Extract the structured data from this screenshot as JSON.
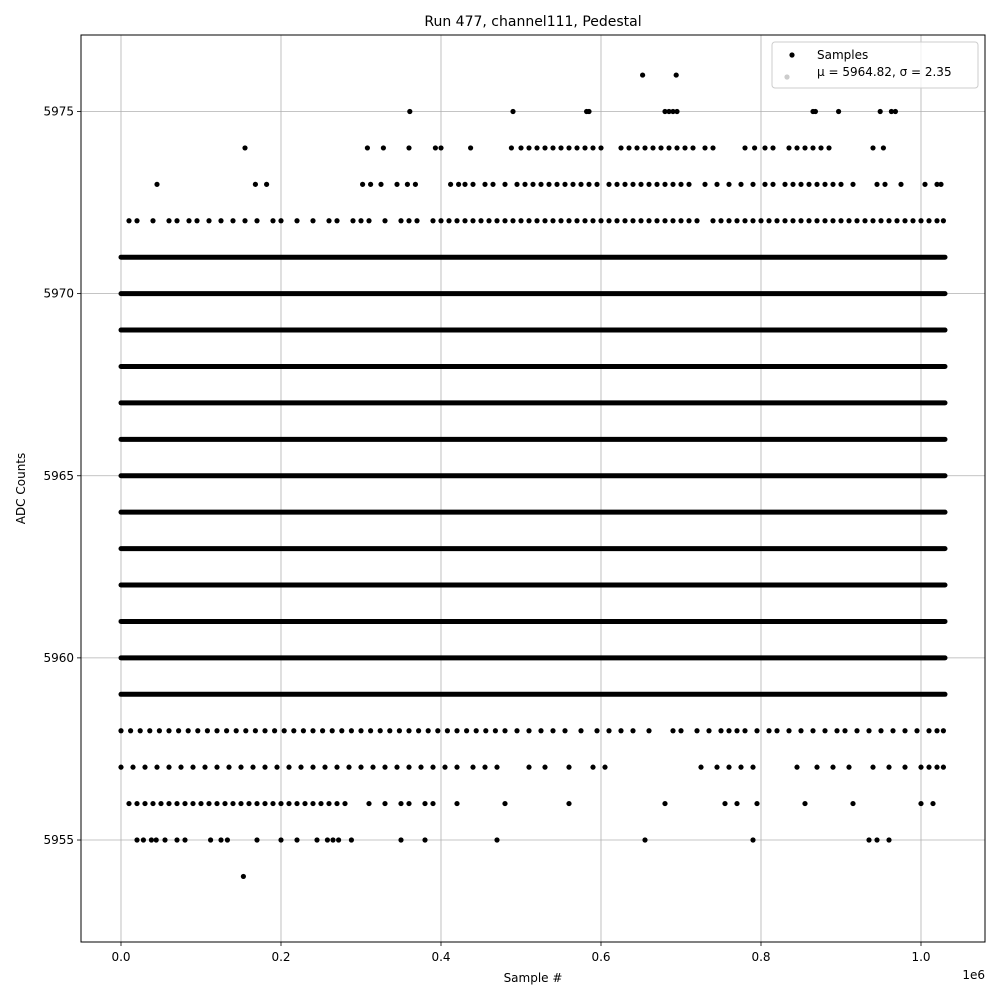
{
  "chart_data": {
    "type": "scatter",
    "title": "Run 477, channel111, Pedestal",
    "xlabel": "Sample #",
    "ylabel": "ADC Counts",
    "x_offset_label": "1e6",
    "xlim": [
      -50000,
      1080000
    ],
    "ylim": [
      5952.2,
      5977.1
    ],
    "x_ticks": [
      0,
      200000,
      400000,
      600000,
      800000,
      1000000
    ],
    "x_tick_labels": [
      "0.0",
      "0.2",
      "0.4",
      "0.6",
      "0.8",
      "1.0"
    ],
    "y_ticks": [
      5955,
      5960,
      5965,
      5970,
      5975
    ],
    "y_tick_labels": [
      "5955",
      "5960",
      "5965",
      "5970",
      "5975"
    ],
    "grid": true,
    "legend_position": "top-right",
    "legend_entries": [
      {
        "label": "Samples",
        "marker_color": "#000000"
      },
      {
        "label": "μ = 5964.82, σ = 2.35",
        "marker_color": "#cccccc"
      }
    ],
    "x_max_sample": 1030000,
    "series": [
      {
        "name": "Samples",
        "color": "#000000",
        "dense_levels": [
          5959,
          5960,
          5961,
          5962,
          5963,
          5964,
          5965,
          5966,
          5967,
          5968,
          5969,
          5970,
          5971
        ],
        "sparse_points": [
          {
            "y": 5954,
            "x": [
              153000
            ]
          },
          {
            "y": 5955,
            "x": [
              20000,
              28000,
              38000,
              44000,
              55000,
              70000,
              80000,
              112000,
              125000,
              133000,
              170000,
              200000,
              220000,
              245000,
              258000,
              265000,
              272000,
              288000,
              350000,
              380000,
              470000,
              655000,
              790000,
              935000,
              945000,
              960000
            ]
          },
          {
            "y": 5956,
            "x": [
              10000,
              20000,
              30000,
              40000,
              50000,
              60000,
              70000,
              80000,
              90000,
              100000,
              110000,
              120000,
              130000,
              140000,
              150000,
              160000,
              170000,
              180000,
              190000,
              200000,
              210000,
              220000,
              230000,
              240000,
              250000,
              260000,
              270000,
              280000,
              310000,
              330000,
              350000,
              360000,
              380000,
              390000,
              420000,
              480000,
              560000,
              680000,
              755000,
              770000,
              795000,
              855000,
              915000,
              1000000,
              1015000
            ]
          },
          {
            "y": 5957,
            "x": [
              0,
              15000,
              30000,
              45000,
              60000,
              75000,
              90000,
              105000,
              120000,
              135000,
              150000,
              165000,
              180000,
              195000,
              210000,
              225000,
              240000,
              255000,
              270000,
              285000,
              300000,
              315000,
              330000,
              345000,
              360000,
              375000,
              390000,
              405000,
              420000,
              440000,
              455000,
              470000,
              510000,
              530000,
              560000,
              590000,
              605000,
              725000,
              745000,
              760000,
              775000,
              790000,
              845000,
              870000,
              890000,
              910000,
              940000,
              960000,
              980000,
              1000000,
              1010000,
              1020000,
              1028000
            ]
          },
          {
            "y": 5958,
            "x": [
              0,
              12000,
              24000,
              36000,
              48000,
              60000,
              72000,
              84000,
              96000,
              108000,
              120000,
              132000,
              144000,
              156000,
              168000,
              180000,
              192000,
              204000,
              216000,
              228000,
              240000,
              252000,
              264000,
              276000,
              288000,
              300000,
              312000,
              324000,
              336000,
              348000,
              360000,
              372000,
              384000,
              396000,
              408000,
              420000,
              432000,
              444000,
              456000,
              468000,
              480000,
              495000,
              510000,
              525000,
              540000,
              555000,
              575000,
              595000,
              610000,
              625000,
              640000,
              660000,
              690000,
              700000,
              720000,
              735000,
              750000,
              760000,
              770000,
              780000,
              795000,
              810000,
              820000,
              835000,
              850000,
              865000,
              880000,
              895000,
              905000,
              920000,
              935000,
              950000,
              965000,
              980000,
              995000,
              1010000,
              1020000,
              1028000
            ]
          },
          {
            "y": 5972,
            "x": [
              10000,
              20000,
              40000,
              60000,
              70000,
              85000,
              95000,
              110000,
              125000,
              140000,
              155000,
              170000,
              190000,
              200000,
              220000,
              240000,
              260000,
              270000,
              290000,
              300000,
              310000,
              330000,
              350000,
              360000,
              370000,
              390000,
              400000,
              410000,
              420000,
              430000,
              440000,
              450000,
              460000,
              470000,
              480000,
              490000,
              500000,
              510000,
              520000,
              530000,
              540000,
              550000,
              560000,
              570000,
              580000,
              590000,
              600000,
              610000,
              620000,
              630000,
              640000,
              650000,
              660000,
              670000,
              680000,
              690000,
              700000,
              710000,
              720000,
              740000,
              750000,
              760000,
              770000,
              780000,
              790000,
              800000,
              810000,
              820000,
              830000,
              840000,
              850000,
              860000,
              870000,
              880000,
              890000,
              900000,
              910000,
              920000,
              930000,
              940000,
              950000,
              960000,
              970000,
              980000,
              990000,
              1000000,
              1010000,
              1020000,
              1028000
            ]
          },
          {
            "y": 5973,
            "x": [
              45000,
              168000,
              182000,
              302000,
              312000,
              325000,
              345000,
              358000,
              368000,
              412000,
              422000,
              430000,
              440000,
              455000,
              465000,
              480000,
              495000,
              505000,
              515000,
              525000,
              535000,
              545000,
              555000,
              565000,
              575000,
              585000,
              595000,
              610000,
              620000,
              630000,
              640000,
              650000,
              660000,
              670000,
              680000,
              690000,
              700000,
              710000,
              730000,
              745000,
              760000,
              775000,
              790000,
              805000,
              815000,
              830000,
              840000,
              850000,
              860000,
              870000,
              880000,
              890000,
              900000,
              915000,
              945000,
              955000,
              975000,
              1005000,
              1020000,
              1025000
            ]
          },
          {
            "y": 5974,
            "x": [
              155000,
              308000,
              328000,
              360000,
              393000,
              400000,
              437000,
              488000,
              500000,
              510000,
              520000,
              530000,
              540000,
              550000,
              560000,
              570000,
              580000,
              590000,
              600000,
              625000,
              635000,
              645000,
              655000,
              665000,
              675000,
              685000,
              695000,
              705000,
              715000,
              730000,
              740000,
              780000,
              792000,
              805000,
              815000,
              835000,
              845000,
              855000,
              865000,
              875000,
              885000,
              940000,
              953000
            ]
          },
          {
            "y": 5975,
            "x": [
              361000,
              490000,
              582000,
              585000,
              680000,
              685000,
              690000,
              695000,
              865000,
              868000,
              897000,
              949000,
              963000,
              968000
            ]
          },
          {
            "y": 5976,
            "x": [
              652000,
              694000
            ]
          }
        ]
      }
    ]
  }
}
